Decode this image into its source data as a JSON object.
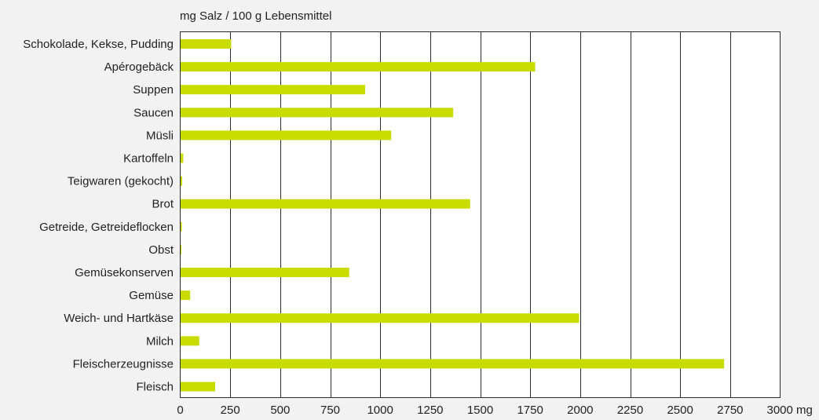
{
  "chart_data": {
    "type": "bar",
    "orientation": "horizontal",
    "title": "mg Salz / 100 g Lebensmittel",
    "categories": [
      "Schokolade, Kekse, Pudding",
      "Apérogebäck",
      "Suppen",
      "Saucen",
      "Müsli",
      "Kartoffeln",
      "Teigwaren (gekocht)",
      "Brot",
      "Getreide, Getreideflocken",
      "Obst",
      "Gemüsekonserven",
      "Gemüse ",
      "Weich- und Hartkäse",
      "Milch",
      "Fleischerzeugnisse",
      "Fleisch"
    ],
    "values": [
      255,
      1775,
      925,
      1365,
      1055,
      15,
      10,
      1450,
      8,
      5,
      845,
      50,
      1995,
      95,
      2720,
      175
    ],
    "xlim": [
      0,
      3000
    ],
    "xticks": [
      0,
      250,
      500,
      750,
      1000,
      1250,
      1500,
      1750,
      2000,
      2250,
      2500,
      2750,
      3000
    ],
    "xtick_labels": [
      "0",
      "250",
      "500",
      "750",
      "1000",
      "1250",
      "1500",
      "1750",
      "2000",
      "2250",
      "2500",
      "2750",
      "3000 mg"
    ],
    "grid": "vertical",
    "legend": "none",
    "colors": {
      "bar": "#c8dc00",
      "grid": "#2b2b2b",
      "background": "#f2f2f2",
      "plot_background": "#ffffff"
    }
  }
}
